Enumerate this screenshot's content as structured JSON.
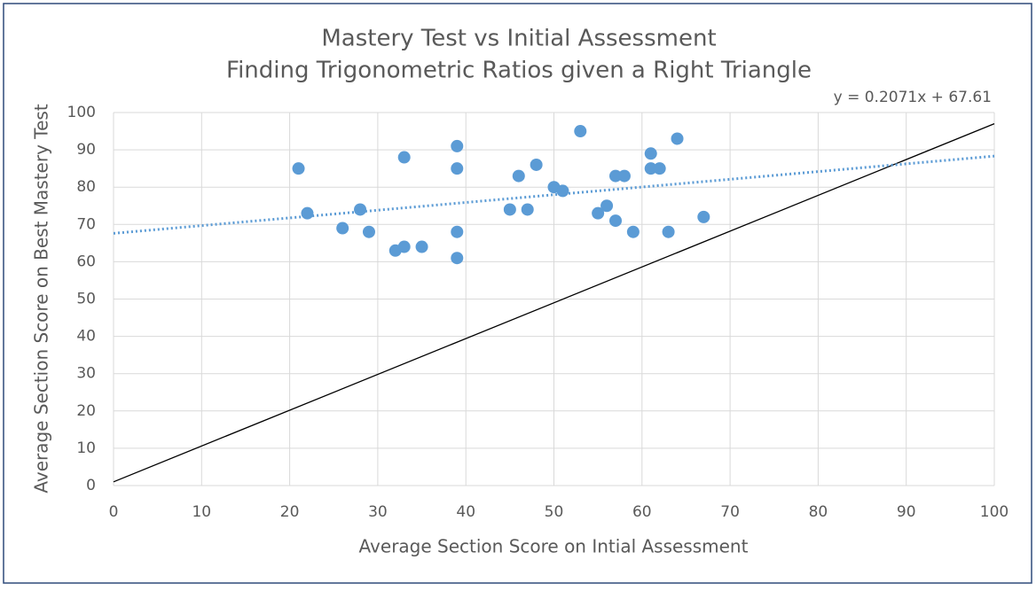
{
  "chart_data": {
    "type": "scatter",
    "title": "Mastery Test vs Initial Assessment",
    "subtitle": "Finding Trigonometric Ratios given a Right Triangle",
    "x_label": "Average Section Score on Intial Assessment",
    "y_label": "Average Section Score on Best Mastery Test",
    "series": [
      {
        "color": "#5b9bd5",
        "x": [
          21,
          22,
          26,
          28,
          29,
          32,
          33,
          33,
          35,
          39,
          39,
          39,
          39,
          45,
          46,
          47,
          48,
          50,
          51,
          53,
          55,
          56,
          57,
          57,
          58,
          59,
          61,
          61,
          62,
          63,
          64,
          67
        ],
        "values": [
          85,
          73,
          69,
          74,
          68,
          63,
          64,
          88,
          64,
          91,
          85,
          68,
          61,
          74,
          83,
          74,
          86,
          80,
          79,
          95,
          73,
          75,
          83,
          71,
          83,
          68,
          89,
          85,
          85,
          68,
          93,
          72
        ]
      }
    ],
    "trendline": {
      "label": "y = 0.2071x + 67.61",
      "slope": 0.2071,
      "intercept": 67.61,
      "color": "#5b9bd5"
    },
    "reference_line": {
      "x": [
        0,
        100
      ],
      "y": [
        1,
        97
      ],
      "color": "#000000"
    },
    "xlim": [
      0,
      100
    ],
    "xticks": [
      0,
      10,
      20,
      30,
      40,
      50,
      60,
      70,
      80,
      90,
      100
    ],
    "ylim": [
      0,
      100
    ],
    "yticks": [
      0,
      10,
      20,
      30,
      40,
      50,
      60,
      70,
      80,
      90,
      100
    ],
    "grid": true
  }
}
